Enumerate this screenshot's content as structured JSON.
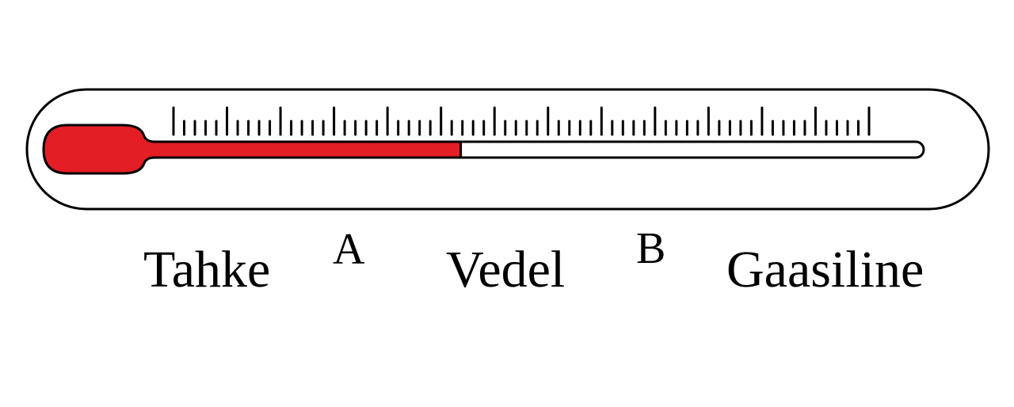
{
  "thermometer": {
    "fill_color": "#e31e24",
    "fill_level": 0.413,
    "major_tick_count": 14,
    "minor_ticks_per_major": 5
  },
  "labels": {
    "solid": "Tahke",
    "a": "A",
    "liquid": "Vedel",
    "b": "B",
    "gas": "Gaasiline"
  }
}
